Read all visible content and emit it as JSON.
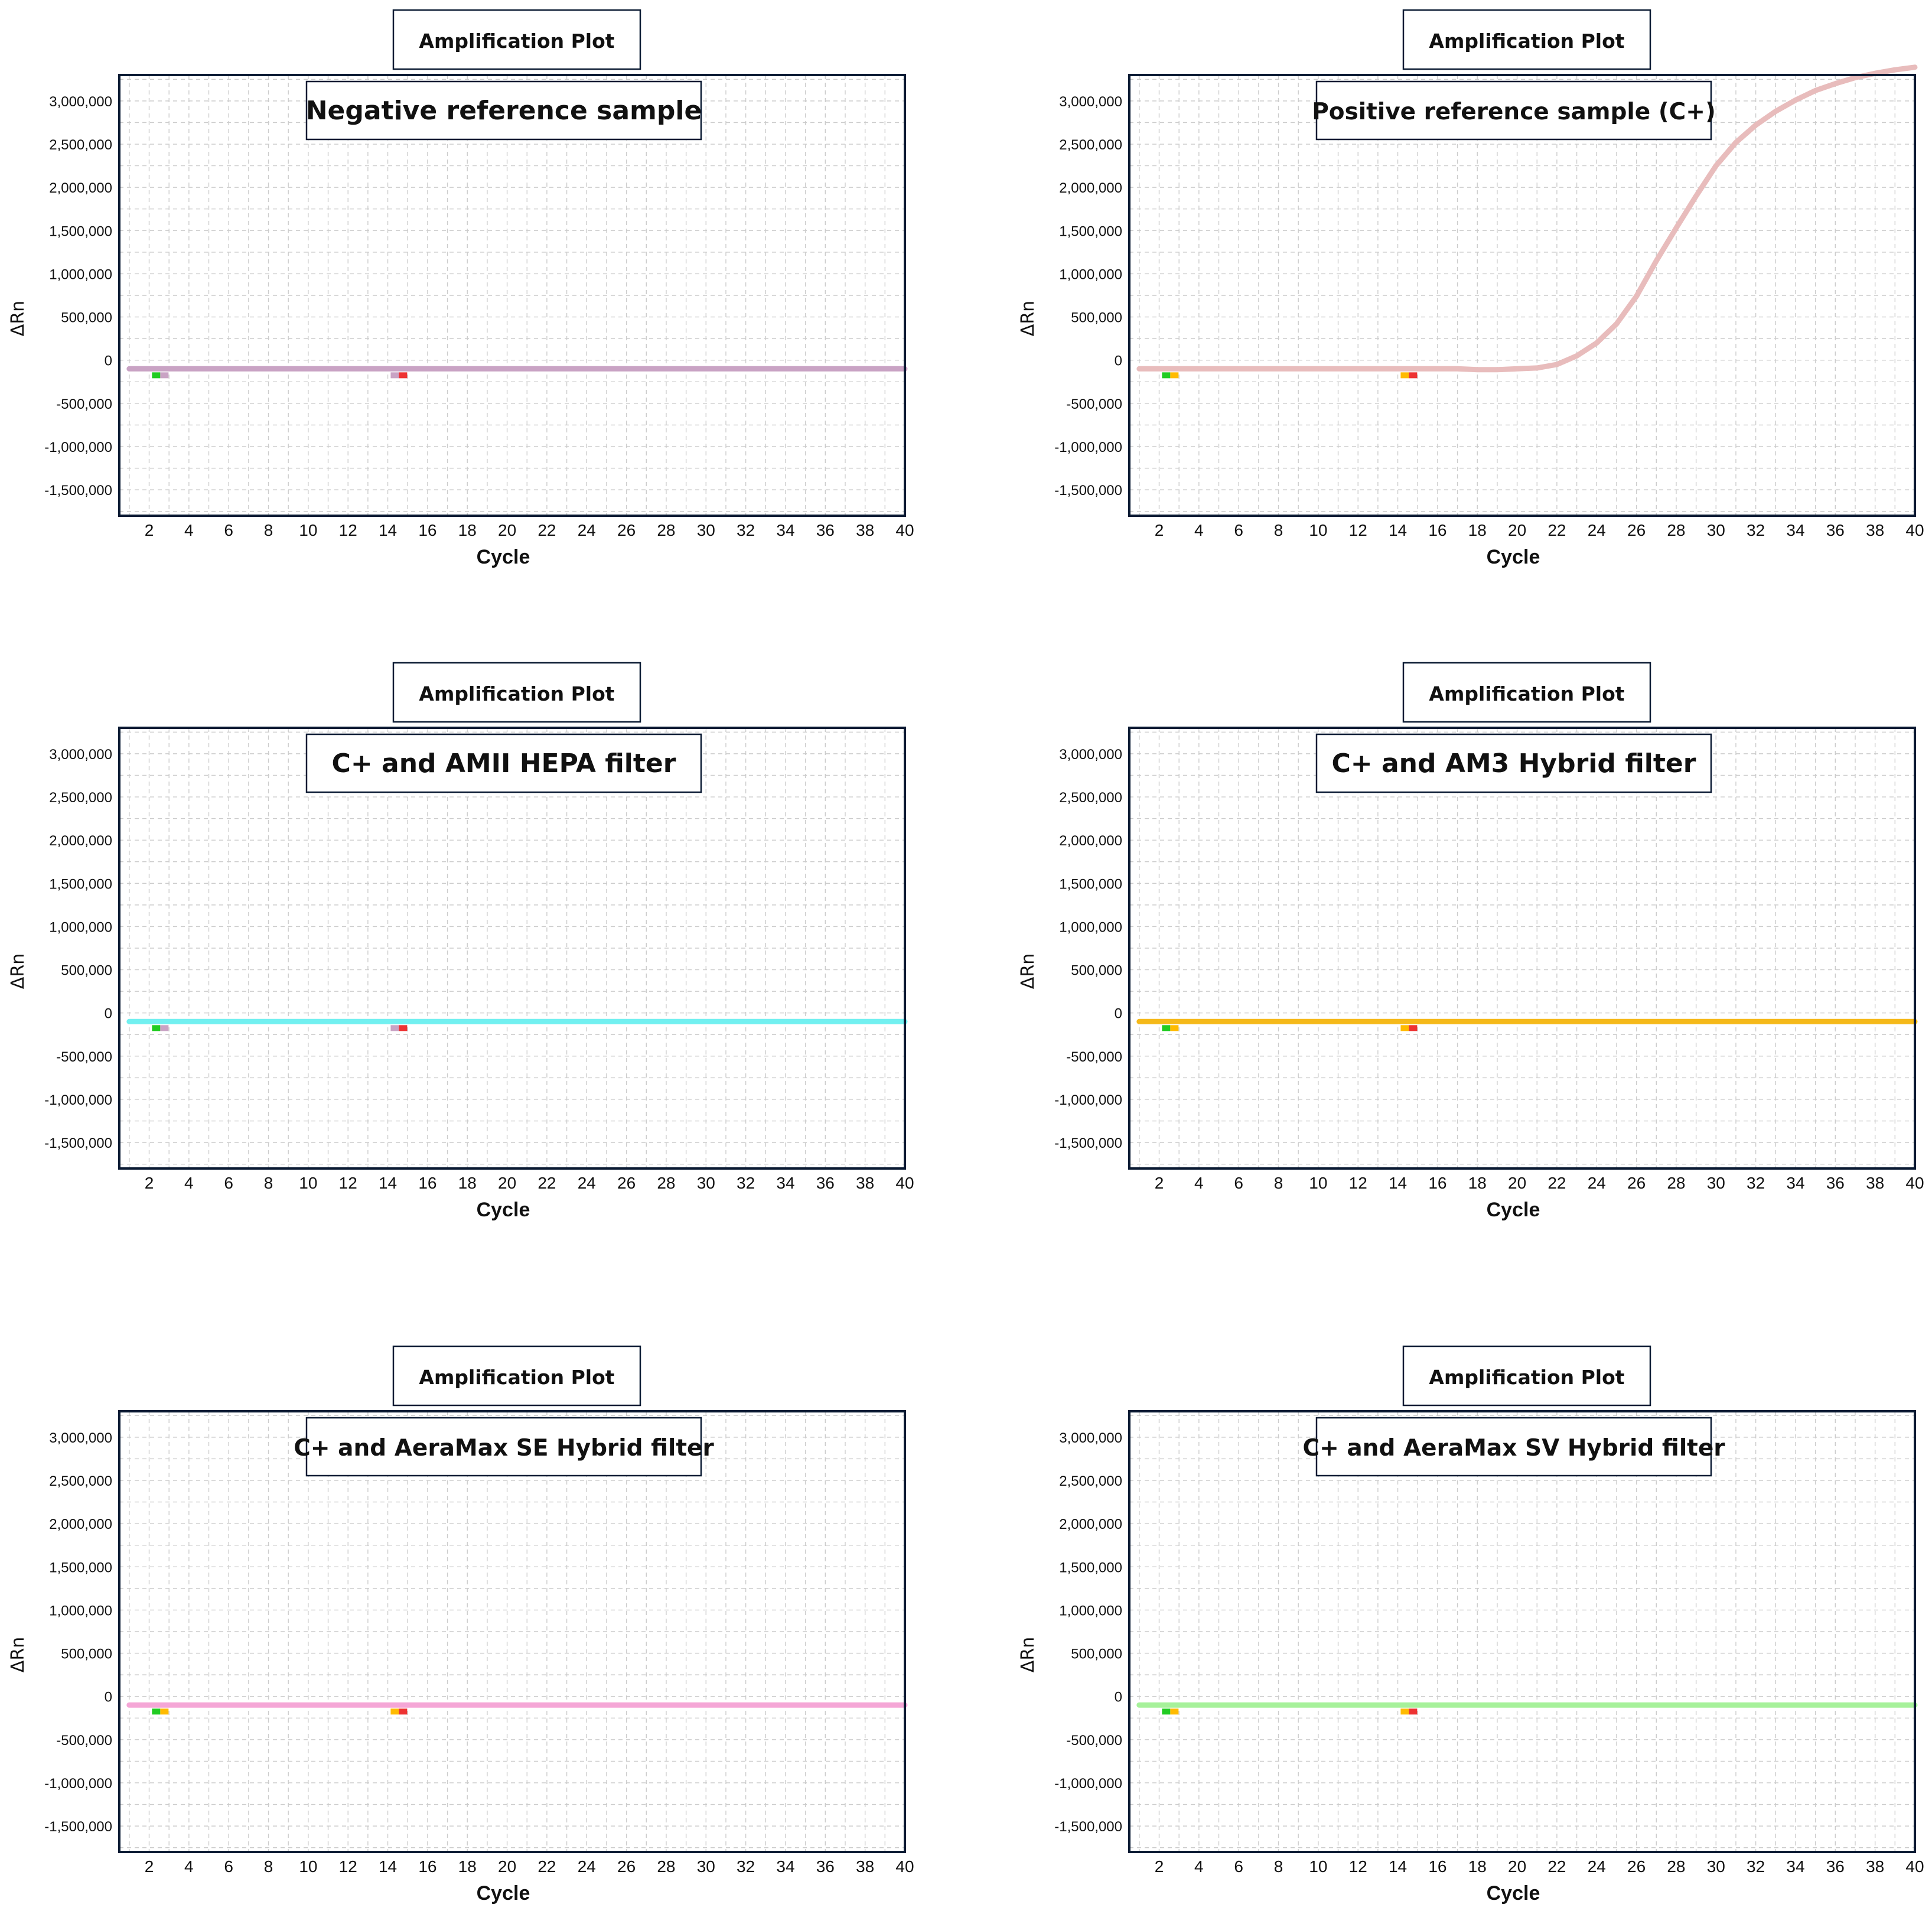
{
  "chart_data": [
    {
      "type": "line",
      "header": "Amplification Plot",
      "title": "Negative reference sample",
      "xlabel": "Cycle",
      "ylabel": "ΔRn",
      "xlim": [
        0.5,
        40
      ],
      "ylim": [
        -1800000,
        3300000
      ],
      "x_ticks": [
        2,
        4,
        6,
        8,
        10,
        12,
        14,
        16,
        18,
        20,
        22,
        24,
        26,
        28,
        30,
        32,
        34,
        36,
        38,
        40
      ],
      "y_ticks": [
        3000000,
        2500000,
        2000000,
        1500000,
        1000000,
        500000,
        0,
        -500000,
        -1000000,
        -1500000
      ],
      "y_tick_labels": [
        "3,000,000",
        "2,500,000",
        "2,000,000",
        "1,500,000",
        "1,000,000",
        "500,000",
        "0",
        "-500,000",
        "-1,000,000",
        "-1,500,000"
      ],
      "grid": true,
      "series": [
        {
          "color": "#c9a3c4",
          "x": [
            1,
            40
          ],
          "y": [
            -100000,
            -100000
          ]
        }
      ],
      "markers": [
        {
          "x": 2.5,
          "colors": [
            "#22cc22",
            "#c9a3c4"
          ]
        },
        {
          "x": 14.5,
          "colors": [
            "#c9a3c4",
            "#ee3333"
          ]
        }
      ]
    },
    {
      "type": "line",
      "header": "Amplification Plot",
      "title": "Positive reference sample (C+)",
      "xlabel": "Cycle",
      "ylabel": "ΔRn",
      "xlim": [
        0.5,
        40
      ],
      "ylim": [
        -1800000,
        3300000
      ],
      "x_ticks": [
        2,
        4,
        6,
        8,
        10,
        12,
        14,
        16,
        18,
        20,
        22,
        24,
        26,
        28,
        30,
        32,
        34,
        36,
        38,
        40
      ],
      "y_ticks": [
        3000000,
        2500000,
        2000000,
        1500000,
        1000000,
        500000,
        0,
        -500000,
        -1000000,
        -1500000
      ],
      "y_tick_labels": [
        "3,000,000",
        "2,500,000",
        "2,000,000",
        "1,500,000",
        "1,000,000",
        "500,000",
        "0",
        "-500,000",
        "-1,000,000",
        "-1,500,000"
      ],
      "grid": true,
      "series": [
        {
          "color": "#e8bcbc",
          "x": [
            1,
            17,
            18,
            19,
            20,
            21,
            22,
            23,
            24,
            25,
            26,
            27,
            28,
            29,
            30,
            31,
            32,
            33,
            34,
            35,
            36,
            37,
            38,
            39,
            40
          ],
          "y": [
            -100000,
            -100000,
            -110000,
            -110000,
            -100000,
            -90000,
            -50000,
            50000,
            200000,
            420000,
            740000,
            1150000,
            1530000,
            1900000,
            2250000,
            2520000,
            2720000,
            2880000,
            3010000,
            3120000,
            3200000,
            3270000,
            3320000,
            3360000,
            3390000
          ]
        }
      ],
      "markers": [
        {
          "x": 2.5,
          "colors": [
            "#22cc22",
            "#ffbb00"
          ]
        },
        {
          "x": 14.5,
          "colors": [
            "#ffbb00",
            "#ee3333"
          ]
        }
      ]
    },
    {
      "type": "line",
      "header": "Amplification Plot",
      "title": "C+ and AMII HEPA filter",
      "xlabel": "Cycle",
      "ylabel": "ΔRn",
      "xlim": [
        0.5,
        40
      ],
      "ylim": [
        -1800000,
        3300000
      ],
      "x_ticks": [
        2,
        4,
        6,
        8,
        10,
        12,
        14,
        16,
        18,
        20,
        22,
        24,
        26,
        28,
        30,
        32,
        34,
        36,
        38,
        40
      ],
      "y_ticks": [
        3000000,
        2500000,
        2000000,
        1500000,
        1000000,
        500000,
        0,
        -500000,
        -1000000,
        -1500000
      ],
      "y_tick_labels": [
        "3,000,000",
        "2,500,000",
        "2,000,000",
        "1,500,000",
        "1,000,000",
        "500,000",
        "0",
        "-500,000",
        "-1,000,000",
        "-1,500,000"
      ],
      "grid": true,
      "series": [
        {
          "color": "#72f0f0",
          "x": [
            1,
            40
          ],
          "y": [
            -100000,
            -100000
          ]
        }
      ],
      "markers": [
        {
          "x": 2.5,
          "colors": [
            "#22cc22",
            "#c9a3c4"
          ]
        },
        {
          "x": 14.5,
          "colors": [
            "#c9a3c4",
            "#ee3333"
          ]
        }
      ]
    },
    {
      "type": "line",
      "header": "Amplification Plot",
      "title": "C+ and AM3 Hybrid filter",
      "xlabel": "Cycle",
      "ylabel": "ΔRn",
      "xlim": [
        0.5,
        40
      ],
      "ylim": [
        -1800000,
        3300000
      ],
      "x_ticks": [
        2,
        4,
        6,
        8,
        10,
        12,
        14,
        16,
        18,
        20,
        22,
        24,
        26,
        28,
        30,
        32,
        34,
        36,
        38,
        40
      ],
      "y_ticks": [
        3000000,
        2500000,
        2000000,
        1500000,
        1000000,
        500000,
        0,
        -500000,
        -1000000,
        -1500000
      ],
      "y_tick_labels": [
        "3,000,000",
        "2,500,000",
        "2,000,000",
        "1,500,000",
        "1,000,000",
        "500,000",
        "0",
        "-500,000",
        "-1,000,000",
        "-1,500,000"
      ],
      "grid": true,
      "series": [
        {
          "color": "#f5b91a",
          "x": [
            1,
            40
          ],
          "y": [
            -100000,
            -100000
          ]
        }
      ],
      "markers": [
        {
          "x": 2.5,
          "colors": [
            "#22cc22",
            "#ffbb00"
          ]
        },
        {
          "x": 14.5,
          "colors": [
            "#ffbb00",
            "#ee3333"
          ]
        }
      ]
    },
    {
      "type": "line",
      "header": "Amplification Plot",
      "title": "C+ and AeraMax SE Hybrid filter",
      "xlabel": "Cycle",
      "ylabel": "ΔRn",
      "xlim": [
        0.5,
        40
      ],
      "ylim": [
        -1800000,
        3300000
      ],
      "x_ticks": [
        2,
        4,
        6,
        8,
        10,
        12,
        14,
        16,
        18,
        20,
        22,
        24,
        26,
        28,
        30,
        32,
        34,
        36,
        38,
        40
      ],
      "y_ticks": [
        3000000,
        2500000,
        2000000,
        1500000,
        1000000,
        500000,
        0,
        -500000,
        -1000000,
        -1500000
      ],
      "y_tick_labels": [
        "3,000,000",
        "2,500,000",
        "2,000,000",
        "1,500,000",
        "1,000,000",
        "500,000",
        "0",
        "-500,000",
        "-1,000,000",
        "-1,500,000"
      ],
      "grid": true,
      "series": [
        {
          "color": "#f5a6d6",
          "x": [
            1,
            40
          ],
          "y": [
            -100000,
            -100000
          ]
        }
      ],
      "markers": [
        {
          "x": 2.5,
          "colors": [
            "#22cc22",
            "#ffbb00"
          ]
        },
        {
          "x": 14.5,
          "colors": [
            "#ffbb00",
            "#ee3333"
          ]
        }
      ]
    },
    {
      "type": "line",
      "header": "Amplification Plot",
      "title": "C+ and AeraMax SV Hybrid filter",
      "xlabel": "Cycle",
      "ylabel": "ΔRn",
      "xlim": [
        0.5,
        40
      ],
      "ylim": [
        -1800000,
        3300000
      ],
      "x_ticks": [
        2,
        4,
        6,
        8,
        10,
        12,
        14,
        16,
        18,
        20,
        22,
        24,
        26,
        28,
        30,
        32,
        34,
        36,
        38,
        40
      ],
      "y_ticks": [
        3000000,
        2500000,
        2000000,
        1500000,
        1000000,
        500000,
        0,
        -500000,
        -1000000,
        -1500000
      ],
      "y_tick_labels": [
        "3,000,000",
        "2,500,000",
        "2,000,000",
        "1,500,000",
        "1,000,000",
        "500,000",
        "0",
        "-500,000",
        "-1,000,000",
        "-1,500,000"
      ],
      "grid": true,
      "series": [
        {
          "color": "#a6f19a",
          "x": [
            1,
            40
          ],
          "y": [
            -100000,
            -100000
          ]
        }
      ],
      "markers": [
        {
          "x": 2.5,
          "colors": [
            "#22cc22",
            "#ffbb00"
          ]
        },
        {
          "x": 14.5,
          "colors": [
            "#ffbb00",
            "#ee3333"
          ]
        }
      ]
    }
  ]
}
